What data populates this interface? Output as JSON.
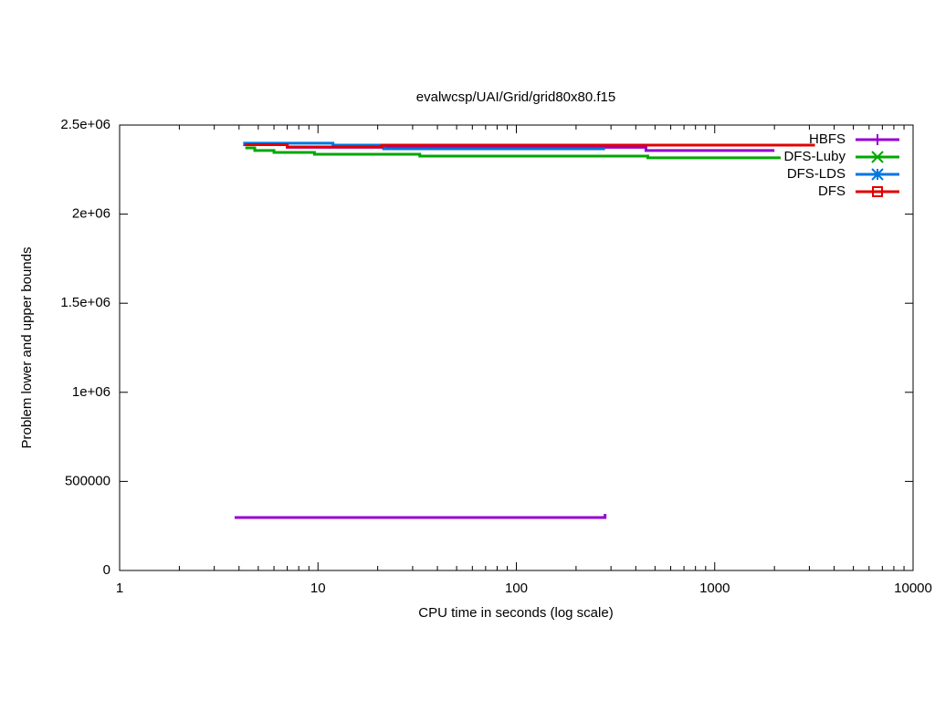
{
  "chart_data": {
    "type": "line",
    "title": "evalwcsp/UAI/Grid/grid80x80.f15",
    "x_label": "CPU time in seconds (log scale)",
    "y_label": "Problem lower and upper bounds",
    "xscale": "log",
    "line_style": "steps",
    "legend": "top-right",
    "grid": false,
    "xlim": [
      1,
      10000
    ],
    "xticks": [
      1,
      10,
      100,
      1000,
      10000
    ],
    "ylim": [
      0,
      2500000
    ],
    "yticks": [
      0,
      500000,
      {
        "value": 1000000,
        "label": "1e+06"
      },
      {
        "value": 1500000,
        "label": "1.5e+06"
      },
      {
        "value": 2000000,
        "label": "2e+06"
      },
      {
        "value": 2500000,
        "label": "2.5e+06"
      }
    ],
    "series": [
      {
        "name": "HBFS",
        "color": "#9400d3",
        "marker": "plus",
        "x": [
          4.2,
          7,
          450,
          2000,
          null,
          3.8,
          280,
          280
        ],
        "values": [
          2390000,
          2375000,
          2357000,
          2357000,
          null,
          297000,
          297000,
          317000
        ]
      },
      {
        "name": "DFS-Luby",
        "color": "#00a800",
        "marker": "cross",
        "x": [
          4.3,
          4.8,
          6,
          9.6,
          32.6,
          460,
          2150
        ],
        "values": [
          2372000,
          2357000,
          2346000,
          2336000,
          2326000,
          2316000,
          2316000
        ]
      },
      {
        "name": "DFS-LDS",
        "color": "#0076e0",
        "marker": "star",
        "x": [
          4.2,
          11.9,
          21.4,
          280
        ],
        "values": [
          2398000,
          2387000,
          2367000,
          2367000
        ]
      },
      {
        "name": "DFS",
        "color": "#e00000",
        "marker": "square",
        "x": [
          4.3,
          7,
          21,
          3200
        ],
        "values": [
          2390000,
          2377000,
          2387000,
          2387000
        ]
      }
    ]
  }
}
